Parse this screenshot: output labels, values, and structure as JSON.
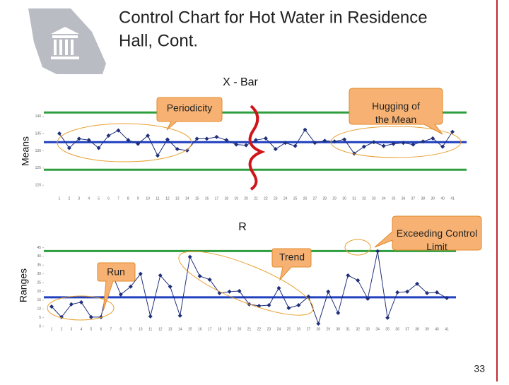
{
  "slide": {
    "title_line1": "Control Chart for Hot Water in Residence",
    "title_line2": "Hall, Cont.",
    "page_number": "33"
  },
  "chart_data": [
    {
      "type": "line",
      "title": "X - Bar",
      "y_label": "Means",
      "categories": [
        1,
        2,
        3,
        4,
        5,
        6,
        7,
        8,
        9,
        10,
        11,
        12,
        13,
        14,
        15,
        16,
        17,
        18,
        19,
        20,
        21,
        22,
        23,
        24,
        25,
        26,
        27,
        28,
        29,
        30,
        31,
        32,
        33,
        34,
        35,
        36,
        37,
        38,
        39,
        40,
        41
      ],
      "values": [
        135.0,
        130.8,
        133.5,
        133.1,
        130.8,
        134.4,
        135.9,
        133.1,
        132.0,
        134.4,
        128.6,
        133.3,
        130.5,
        130.1,
        133.5,
        133.5,
        134.0,
        133.1,
        131.8,
        131.6,
        133.1,
        133.6,
        130.5,
        132.3,
        131.4,
        136.1,
        132.3,
        132.9,
        132.7,
        133.3,
        129.2,
        131.2,
        132.5,
        131.4,
        132.0,
        132.3,
        131.8,
        132.7,
        133.6,
        131.2,
        135.5
      ],
      "color": "#1f2f7a",
      "ylim": [
        118,
        143
      ],
      "yticks": [
        140,
        135,
        130,
        125,
        120
      ],
      "control_lines": [
        {
          "value": 141.1,
          "color": "#2e9e3e"
        },
        {
          "value": 132.5,
          "color": "#1f3fbf"
        },
        {
          "value": 124.5,
          "color": "#2e9e3e"
        }
      ],
      "annotations": [
        "Periodicity",
        "Hugging of the Mean"
      ]
    },
    {
      "type": "line",
      "title": "R",
      "y_label": "Ranges",
      "categories": [
        1,
        2,
        3,
        4,
        5,
        6,
        7,
        8,
        9,
        10,
        11,
        12,
        13,
        14,
        15,
        16,
        17,
        18,
        19,
        20,
        21,
        22,
        23,
        24,
        25,
        26,
        27,
        28,
        29,
        30,
        31,
        32,
        33,
        34,
        35,
        36,
        37,
        38,
        39,
        40,
        41
      ],
      "values": [
        11.3,
        5.3,
        12.6,
        13.8,
        5.3,
        5.3,
        31.6,
        18.2,
        22.7,
        30.0,
        5.7,
        29.1,
        22.7,
        6.1,
        39.7,
        28.7,
        26.7,
        19.0,
        19.8,
        20.2,
        12.6,
        11.7,
        12.1,
        21.9,
        10.5,
        12.1,
        17.0,
        1.6,
        19.8,
        7.7,
        29.1,
        26.3,
        15.8,
        42.9,
        4.9,
        19.4,
        19.8,
        24.3,
        19.0,
        19.4,
        16.2
      ],
      "color": "#1f2f7a",
      "ylim": [
        -2,
        48
      ],
      "yticks": [
        45,
        40,
        35,
        30,
        25,
        20,
        15,
        10,
        5,
        0
      ],
      "control_lines": [
        {
          "value": 43.0,
          "color": "#2e9e3e"
        },
        {
          "value": 16.6,
          "color": "#1f3fbf"
        }
      ],
      "annotations": [
        "Run",
        "Trend",
        "Exceeding Control Limit"
      ]
    }
  ]
}
